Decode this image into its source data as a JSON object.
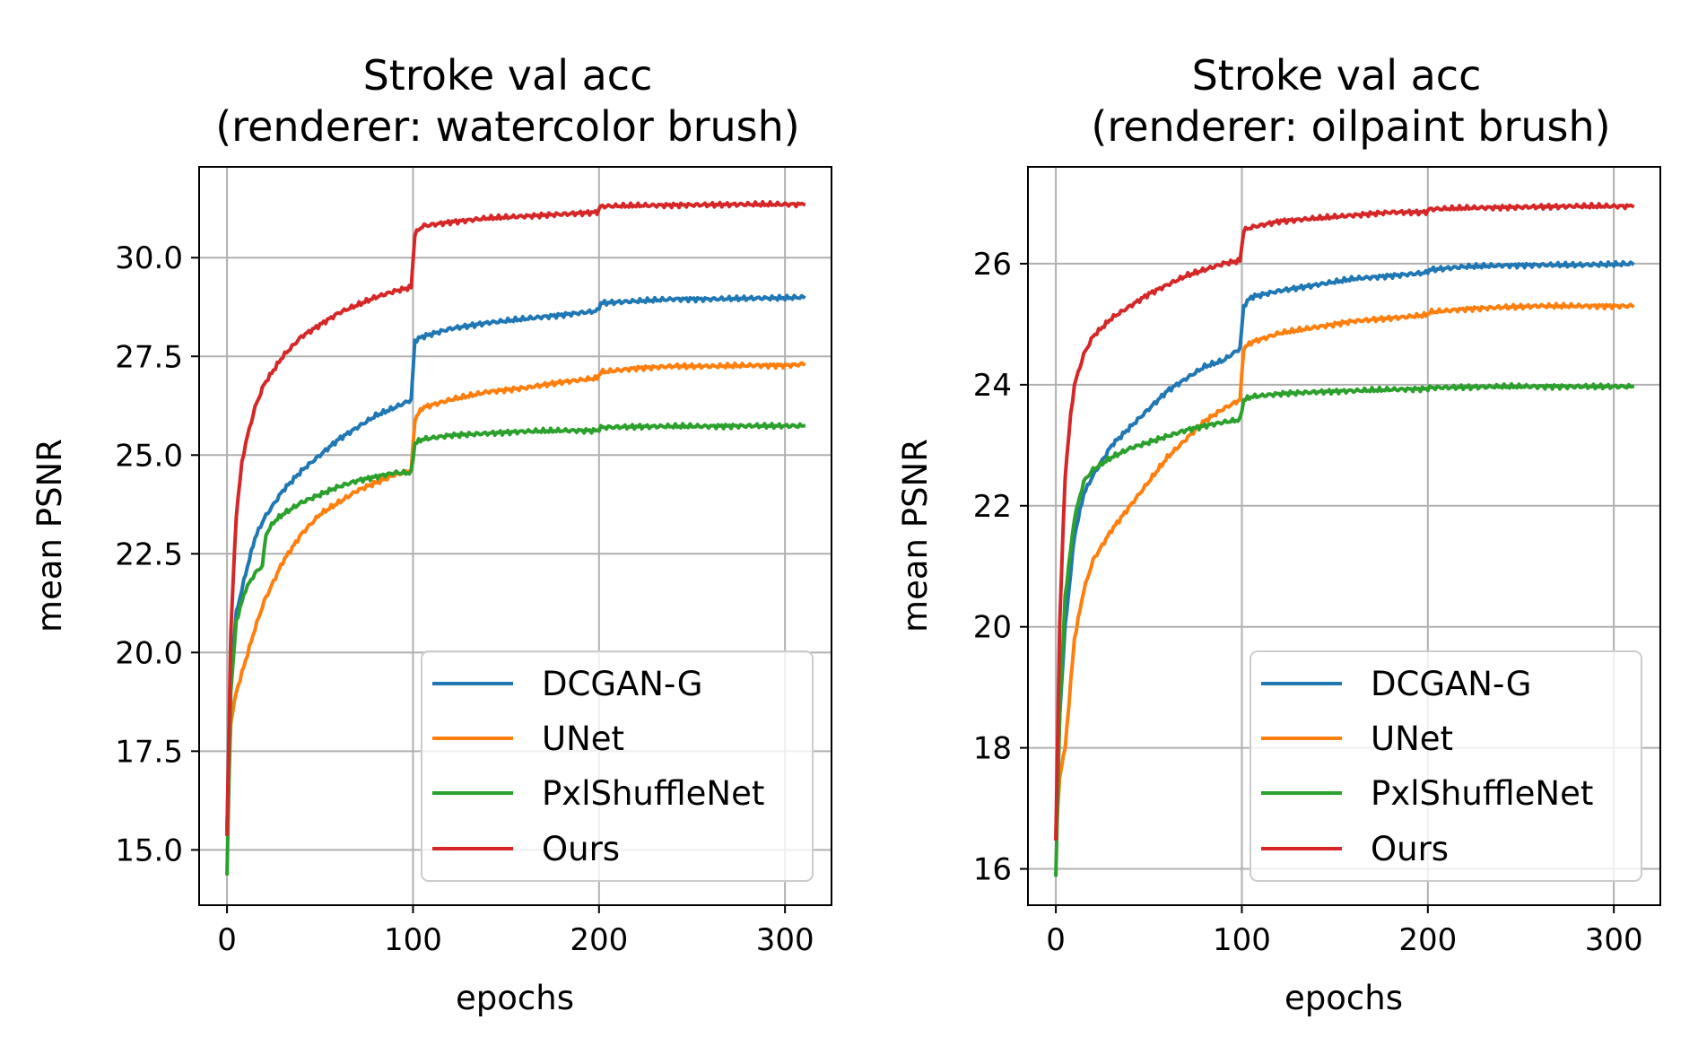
{
  "chart_data": [
    {
      "type": "line",
      "title": [
        "Stroke val acc",
        "(renderer: watercolor brush)"
      ],
      "xlabel": "epochs",
      "ylabel": "mean PSNR",
      "xlim": [
        -15,
        325
      ],
      "ylim": [
        13.6,
        32.3
      ],
      "xticks": [
        0,
        100,
        200,
        300
      ],
      "xtick_labels": [
        "0",
        "100",
        "200",
        "300"
      ],
      "yticks": [
        15,
        17.5,
        20,
        22.5,
        25,
        27.5,
        30
      ],
      "ytick_labels": [
        "15.0",
        "17.5",
        "20.0",
        "22.5",
        "25.0",
        "27.5",
        "30.0"
      ],
      "grid": true,
      "legend_position": "lower-right",
      "series": [
        {
          "name": "DCGAN-G",
          "color": "#1f77b4",
          "x": [
            0,
            2,
            5,
            10,
            15,
            20,
            30,
            40,
            50,
            60,
            70,
            80,
            90,
            99,
            101,
            105,
            120,
            140,
            160,
            180,
            199,
            201,
            220,
            240,
            260,
            280,
            300,
            310
          ],
          "y": [
            15.6,
            19.5,
            21.0,
            22.0,
            22.9,
            23.4,
            24.1,
            24.6,
            25.0,
            25.4,
            25.7,
            26.0,
            26.2,
            26.4,
            27.9,
            28.0,
            28.2,
            28.35,
            28.45,
            28.55,
            28.65,
            28.85,
            28.9,
            28.95,
            28.95,
            28.97,
            28.98,
            29.0
          ]
        },
        {
          "name": "UNet",
          "color": "#ff7f0e",
          "x": [
            0,
            2,
            5,
            10,
            15,
            20,
            30,
            40,
            50,
            60,
            70,
            80,
            90,
            99,
            101,
            105,
            120,
            140,
            160,
            180,
            199,
            201,
            220,
            240,
            260,
            280,
            300,
            310
          ],
          "y": [
            15.5,
            18.2,
            19.0,
            19.8,
            20.6,
            21.3,
            22.3,
            23.0,
            23.5,
            23.8,
            24.1,
            24.3,
            24.5,
            24.6,
            25.9,
            26.2,
            26.4,
            26.6,
            26.7,
            26.85,
            26.95,
            27.1,
            27.2,
            27.25,
            27.25,
            27.27,
            27.27,
            27.3
          ]
        },
        {
          "name": "PxlShuffleNet",
          "color": "#2ca02c",
          "x": [
            0,
            2,
            5,
            10,
            15,
            19,
            21,
            25,
            30,
            40,
            50,
            60,
            70,
            80,
            90,
            99,
            101,
            105,
            120,
            140,
            160,
            180,
            199,
            201,
            220,
            240,
            260,
            280,
            300,
            310
          ],
          "y": [
            14.4,
            19.0,
            20.8,
            21.6,
            22.0,
            22.2,
            23.0,
            23.3,
            23.5,
            23.8,
            24.0,
            24.2,
            24.35,
            24.45,
            24.55,
            24.55,
            25.3,
            25.4,
            25.5,
            25.55,
            25.6,
            25.62,
            25.62,
            25.7,
            25.72,
            25.73,
            25.73,
            25.74,
            25.74,
            25.74
          ]
        },
        {
          "name": "Ours",
          "color": "#d62728",
          "x": [
            0,
            2,
            5,
            8,
            10,
            15,
            20,
            30,
            40,
            50,
            60,
            70,
            80,
            90,
            99,
            101,
            105,
            120,
            140,
            160,
            180,
            199,
            201,
            220,
            240,
            260,
            280,
            300,
            310
          ],
          "y": [
            15.4,
            20.5,
            23.5,
            24.8,
            25.3,
            26.2,
            26.8,
            27.5,
            28.0,
            28.3,
            28.6,
            28.8,
            29.0,
            29.15,
            29.25,
            30.6,
            30.8,
            30.9,
            31.0,
            31.05,
            31.1,
            31.15,
            31.3,
            31.32,
            31.33,
            31.34,
            31.35,
            31.35,
            31.35
          ]
        }
      ]
    },
    {
      "type": "line",
      "title": [
        "Stroke val acc",
        "(renderer: oilpaint brush)"
      ],
      "xlabel": "epochs",
      "ylabel": "mean PSNR",
      "xlim": [
        -15,
        325
      ],
      "ylim": [
        15.4,
        27.6
      ],
      "xticks": [
        0,
        100,
        200,
        300
      ],
      "xtick_labels": [
        "0",
        "100",
        "200",
        "300"
      ],
      "yticks": [
        16,
        18,
        20,
        22,
        24,
        26
      ],
      "ytick_labels": [
        "16",
        "18",
        "20",
        "22",
        "24",
        "26"
      ],
      "grid": true,
      "legend_position": "lower-right",
      "series": [
        {
          "name": "DCGAN-G",
          "color": "#1f77b4",
          "x": [
            0,
            2,
            5,
            10,
            15,
            20,
            30,
            40,
            50,
            60,
            70,
            80,
            90,
            99,
            101,
            105,
            120,
            140,
            160,
            180,
            199,
            201,
            220,
            240,
            260,
            280,
            300,
            310
          ],
          "y": [
            16.5,
            18.5,
            20.0,
            21.5,
            22.2,
            22.5,
            23.0,
            23.3,
            23.6,
            23.9,
            24.1,
            24.3,
            24.4,
            24.6,
            25.3,
            25.45,
            25.55,
            25.65,
            25.75,
            25.8,
            25.85,
            25.9,
            25.95,
            25.97,
            25.98,
            25.98,
            25.99,
            26.0
          ]
        },
        {
          "name": "UNet",
          "color": "#ff7f0e",
          "x": [
            0,
            2,
            5,
            10,
            15,
            20,
            30,
            40,
            50,
            60,
            70,
            80,
            90,
            99,
            101,
            105,
            120,
            140,
            160,
            180,
            199,
            201,
            220,
            240,
            260,
            280,
            300,
            310
          ],
          "y": [
            16.5,
            17.5,
            18.0,
            19.8,
            20.6,
            21.1,
            21.6,
            22.0,
            22.4,
            22.8,
            23.1,
            23.4,
            23.6,
            23.75,
            24.6,
            24.7,
            24.85,
            24.95,
            25.05,
            25.1,
            25.15,
            25.2,
            25.25,
            25.28,
            25.3,
            25.3,
            25.3,
            25.3
          ]
        },
        {
          "name": "PxlShuffleNet",
          "color": "#2ca02c",
          "x": [
            0,
            2,
            5,
            10,
            15,
            20,
            30,
            40,
            50,
            60,
            70,
            80,
            90,
            99,
            101,
            105,
            120,
            140,
            160,
            180,
            199,
            201,
            220,
            240,
            260,
            280,
            300,
            310
          ],
          "y": [
            15.9,
            18.5,
            20.5,
            21.8,
            22.4,
            22.6,
            22.8,
            22.95,
            23.05,
            23.15,
            23.25,
            23.32,
            23.38,
            23.42,
            23.75,
            23.8,
            23.85,
            23.88,
            23.9,
            23.92,
            23.93,
            23.95,
            23.96,
            23.97,
            23.97,
            23.97,
            23.97,
            23.97
          ]
        },
        {
          "name": "Ours",
          "color": "#d62728",
          "x": [
            0,
            2,
            5,
            8,
            10,
            15,
            20,
            30,
            40,
            50,
            60,
            70,
            80,
            90,
            99,
            101,
            105,
            120,
            140,
            160,
            180,
            199,
            201,
            220,
            240,
            260,
            280,
            300,
            310
          ],
          "y": [
            16.5,
            20.0,
            22.5,
            23.5,
            24.0,
            24.5,
            24.8,
            25.1,
            25.3,
            25.5,
            25.65,
            25.8,
            25.9,
            26.0,
            26.05,
            26.55,
            26.6,
            26.7,
            26.75,
            26.8,
            26.85,
            26.85,
            26.9,
            26.92,
            26.93,
            26.94,
            26.95,
            26.95,
            26.95
          ]
        }
      ]
    }
  ]
}
